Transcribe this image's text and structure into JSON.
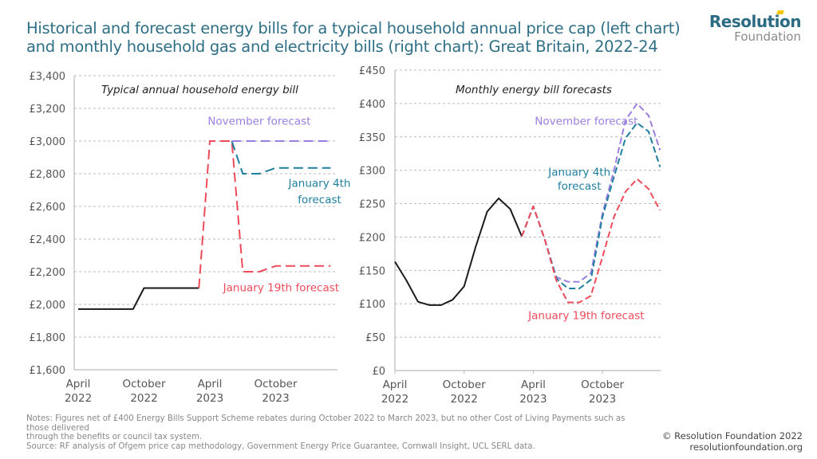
{
  "header": {
    "title": "Historical and forecast energy bills for a typical household annual price cap (left chart) and monthly household gas and electricity bills (right chart): Great Britain, 2022-24",
    "logo_top": "Resolution",
    "logo_bottom": "Foundation"
  },
  "colors": {
    "title": "#2f6f86",
    "historical": "#1a1a1a",
    "november": "#9b7fe0",
    "jan4": "#1e7f9e",
    "jan19": "#ee4b5a",
    "grid": "#bbbbbb"
  },
  "chart_data": [
    {
      "type": "line",
      "title": "Typical annual household energy bill",
      "xlabel": "",
      "ylabel": "",
      "ylim": [
        1600,
        3400
      ],
      "yticks": [
        1600,
        1800,
        2000,
        2200,
        2400,
        2600,
        2800,
        3000,
        3200,
        3400
      ],
      "ytick_labels": [
        "£1,600",
        "£1,800",
        "£2,000",
        "£2,200",
        "£2,400",
        "£2,600",
        "£2,800",
        "£3,000",
        "£3,200",
        "£3,400"
      ],
      "x_unit": "months since April 2022",
      "xlim": [
        -0.4,
        23.5
      ],
      "xticks": [
        {
          "x": 0,
          "line1": "April",
          "line2": "2022"
        },
        {
          "x": 6,
          "line1": "October",
          "line2": "2022"
        },
        {
          "x": 12,
          "line1": "April",
          "line2": "2023"
        },
        {
          "x": 18,
          "line1": "October",
          "line2": "2023"
        }
      ],
      "grid": true,
      "series": [
        {
          "name": "Historical",
          "key": "historical",
          "dashed": false,
          "points": [
            [
              0,
              1971
            ],
            [
              5,
              1971
            ],
            [
              6,
              2100
            ],
            [
              11,
              2100
            ]
          ]
        },
        {
          "name": "January 19th forecast",
          "key": "jan19",
          "dashed": true,
          "points": [
            [
              11,
              2100
            ],
            [
              12,
              3000
            ],
            [
              14,
              3000
            ],
            [
              15,
              2200
            ],
            [
              16.5,
              2200
            ],
            [
              18,
              2235
            ],
            [
              23,
              2235
            ]
          ]
        },
        {
          "name": "January 4th forecast",
          "key": "jan4",
          "dashed": true,
          "points": [
            [
              14,
              3000
            ],
            [
              15,
              2800
            ],
            [
              16.5,
              2800
            ],
            [
              18,
              2835
            ],
            [
              23,
              2835
            ]
          ]
        },
        {
          "name": "November forecast",
          "key": "november",
          "dashed": true,
          "points": [
            [
              14,
              3000
            ],
            [
              23,
              3000
            ]
          ]
        }
      ],
      "annotations": [
        {
          "text": "November forecast",
          "key": "november",
          "x": 16.5,
          "y": 3100
        },
        {
          "text": "January 4th",
          "key": "jan4",
          "x": 22,
          "y": 2720
        },
        {
          "text": "forecast",
          "key": "jan4",
          "x": 22,
          "y": 2620
        },
        {
          "text": "January 19th forecast",
          "key": "jan19",
          "x": 18.5,
          "y": 2080
        }
      ]
    },
    {
      "type": "line",
      "title": "Monthly energy bill forecasts",
      "xlabel": "",
      "ylabel": "",
      "ylim": [
        0,
        450
      ],
      "yticks": [
        0,
        50,
        100,
        150,
        200,
        250,
        300,
        350,
        400,
        450
      ],
      "ytick_labels": [
        "£0",
        "£50",
        "£100",
        "£150",
        "£200",
        "£250",
        "£300",
        "£350",
        "£400",
        "£450"
      ],
      "x_unit": "months since April 2022",
      "xlim": [
        0,
        23.2
      ],
      "xticks": [
        {
          "x": 0,
          "line1": "April",
          "line2": "2022"
        },
        {
          "x": 6,
          "line1": "October",
          "line2": "2022"
        },
        {
          "x": 12,
          "line1": "April",
          "line2": "2023"
        },
        {
          "x": 18,
          "line1": "October",
          "line2": "2023"
        }
      ],
      "grid": true,
      "series": [
        {
          "name": "Historical",
          "key": "historical",
          "dashed": false,
          "points": [
            [
              0,
              163
            ],
            [
              1,
              135
            ],
            [
              2,
              103
            ],
            [
              3,
              98
            ],
            [
              4,
              98
            ],
            [
              5,
              106
            ],
            [
              6,
              126
            ],
            [
              7,
              185
            ],
            [
              8,
              238
            ],
            [
              9,
              258
            ],
            [
              10,
              242
            ],
            [
              11,
              201
            ]
          ]
        },
        {
          "name": "November forecast",
          "key": "november",
          "dashed": true,
          "points": [
            [
              11,
              201
            ],
            [
              12,
              246
            ],
            [
              13,
              196
            ],
            [
              14,
              140
            ],
            [
              15,
              133
            ],
            [
              16,
              133
            ],
            [
              17,
              146
            ],
            [
              18,
              235
            ],
            [
              19,
              300
            ],
            [
              20,
              375
            ],
            [
              21,
              400
            ],
            [
              22,
              382
            ],
            [
              23,
              330
            ]
          ]
        },
        {
          "name": "January 4th forecast",
          "key": "jan4",
          "dashed": true,
          "points": [
            [
              11,
              201
            ],
            [
              12,
              246
            ],
            [
              13,
              196
            ],
            [
              14,
              138
            ],
            [
              15,
              123
            ],
            [
              16,
              123
            ],
            [
              17,
              136
            ],
            [
              18,
              230
            ],
            [
              19,
              290
            ],
            [
              20,
              348
            ],
            [
              21,
              371
            ],
            [
              22,
              358
            ],
            [
              23,
              305
            ]
          ]
        },
        {
          "name": "January 19th forecast",
          "key": "jan19",
          "dashed": true,
          "points": [
            [
              11,
              201
            ],
            [
              12,
              246
            ],
            [
              13,
              196
            ],
            [
              14,
              135
            ],
            [
              15,
              102
            ],
            [
              16,
              102
            ],
            [
              17,
              112
            ],
            [
              18,
              170
            ],
            [
              19,
              230
            ],
            [
              20,
              268
            ],
            [
              21,
              287
            ],
            [
              22,
              272
            ],
            [
              23,
              240
            ]
          ]
        }
      ],
      "annotations": [
        {
          "text": "November forecast",
          "key": "november",
          "x": 16.6,
          "y": 368
        },
        {
          "text": "January 4th",
          "key": "jan4",
          "x": 16.0,
          "y": 292
        },
        {
          "text": "forecast",
          "key": "jan4",
          "x": 16.0,
          "y": 271
        },
        {
          "text": "January 19th forecast",
          "key": "jan19",
          "x": 16.6,
          "y": 77
        }
      ]
    }
  ],
  "footer": {
    "notes_line1": "Notes: Figures net of £400 Energy Bills Support Scheme rebates during October 2022 to March 2023, but no other Cost of Living Payments such as those delivered",
    "notes_line2": "through the benefits or council tax system.",
    "source": "Source: RF analysis of Ofgem price cap methodology, Government Energy Price Guarantee, Cornwall Insight, UCL SERL data.",
    "copyright": "© Resolution Foundation 2022",
    "website": "resolutionfoundation.org"
  }
}
